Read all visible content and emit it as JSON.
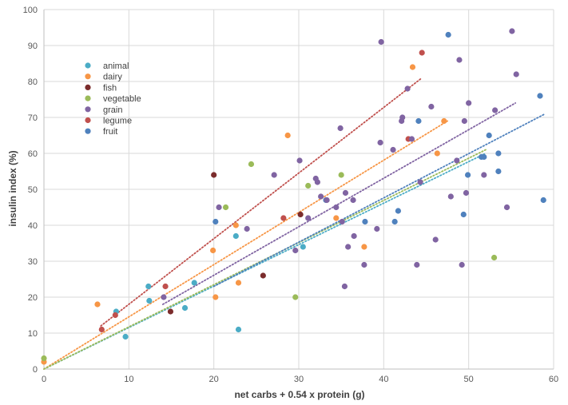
{
  "chart_data": {
    "type": "scatter",
    "xlabel": "net carbs + 0.54 x protein (g)",
    "ylabel": "insulin index (%)",
    "xlim": [
      0,
      60
    ],
    "ylim": [
      0,
      100
    ],
    "x_ticks": [
      0,
      10,
      20,
      30,
      40,
      50,
      60
    ],
    "y_ticks": [
      0,
      10,
      20,
      30,
      40,
      50,
      60,
      70,
      80,
      90,
      100
    ],
    "grid": "horizontal and vertical",
    "legend_position": "top-left",
    "series": [
      {
        "name": "animal",
        "color": "#4bacc6",
        "points": [
          [
            8.5,
            16
          ],
          [
            9.6,
            9
          ],
          [
            12.3,
            23
          ],
          [
            12.4,
            19
          ],
          [
            16.6,
            17
          ],
          [
            17.7,
            24
          ],
          [
            22.6,
            37
          ],
          [
            22.9,
            11
          ],
          [
            30.5,
            34
          ]
        ],
        "trendline": [
          [
            0,
            0
          ],
          [
            52,
            60
          ]
        ]
      },
      {
        "name": "dairy",
        "color": "#f79646",
        "points": [
          [
            0,
            2
          ],
          [
            6.3,
            18
          ],
          [
            19.9,
            33
          ],
          [
            20.2,
            20
          ],
          [
            22.6,
            40
          ],
          [
            22.9,
            24
          ],
          [
            28.7,
            65
          ],
          [
            34.4,
            42
          ],
          [
            37.7,
            34
          ],
          [
            43.4,
            84
          ],
          [
            46.3,
            60
          ],
          [
            47.1,
            69
          ]
        ],
        "trendline": [
          [
            0,
            0
          ],
          [
            47.5,
            69
          ]
        ]
      },
      {
        "name": "fish",
        "color": "#7b2c2c",
        "points": [
          [
            14.9,
            16
          ],
          [
            20,
            54
          ],
          [
            25.8,
            26
          ],
          [
            30.2,
            43
          ]
        ],
        "trendline": null
      },
      {
        "name": "vegetable",
        "color": "#9bbb59",
        "points": [
          [
            0,
            3
          ],
          [
            21.4,
            45
          ],
          [
            24.4,
            57
          ],
          [
            29.6,
            20
          ],
          [
            31.1,
            51
          ],
          [
            35,
            54
          ],
          [
            53,
            31
          ]
        ],
        "trendline": [
          [
            0,
            0
          ],
          [
            52,
            61
          ]
        ]
      },
      {
        "name": "grain",
        "color": "#8064a2",
        "points": [
          [
            14.1,
            20
          ],
          [
            20.6,
            45
          ],
          [
            23.9,
            39
          ],
          [
            27.1,
            54
          ],
          [
            29.6,
            33
          ],
          [
            30.1,
            58
          ],
          [
            31.1,
            42
          ],
          [
            32,
            53
          ],
          [
            32.2,
            52
          ],
          [
            32.6,
            48
          ],
          [
            33.3,
            47
          ],
          [
            34.4,
            45
          ],
          [
            34.9,
            67
          ],
          [
            35.1,
            41
          ],
          [
            35.4,
            23
          ],
          [
            35.5,
            49
          ],
          [
            35.8,
            34
          ],
          [
            36.4,
            47
          ],
          [
            36.5,
            37
          ],
          [
            37.7,
            29
          ],
          [
            39.2,
            39
          ],
          [
            39.6,
            63
          ],
          [
            39.7,
            91
          ],
          [
            41.1,
            61
          ],
          [
            42.1,
            69
          ],
          [
            42.2,
            70
          ],
          [
            42.8,
            78
          ],
          [
            43.3,
            64
          ],
          [
            43.9,
            29
          ],
          [
            44.3,
            52
          ],
          [
            45.6,
            73
          ],
          [
            46.1,
            36
          ],
          [
            47.9,
            48
          ],
          [
            48.6,
            58
          ],
          [
            48.9,
            86
          ],
          [
            49.2,
            29
          ],
          [
            49.5,
            69
          ],
          [
            49.7,
            49
          ],
          [
            50,
            74
          ],
          [
            51.8,
            54
          ],
          [
            53.1,
            72
          ],
          [
            54.5,
            45
          ],
          [
            55.1,
            94
          ],
          [
            55.6,
            82
          ]
        ],
        "trendline": [
          [
            14,
            18
          ],
          [
            55.5,
            74
          ]
        ]
      },
      {
        "name": "legume",
        "color": "#c0504d",
        "points": [
          [
            6.8,
            11
          ],
          [
            8.4,
            15
          ],
          [
            14.3,
            23
          ],
          [
            28.2,
            42
          ],
          [
            42.9,
            64
          ],
          [
            44.5,
            88
          ]
        ],
        "trendline": [
          [
            6.7,
            12
          ],
          [
            44.5,
            81
          ]
        ]
      },
      {
        "name": "fruit",
        "color": "#4f81bd",
        "points": [
          [
            20.2,
            41
          ],
          [
            33.2,
            47
          ],
          [
            37.8,
            41
          ],
          [
            41.3,
            41
          ],
          [
            41.7,
            44
          ],
          [
            44.1,
            69
          ],
          [
            47.6,
            93
          ],
          [
            49.4,
            43
          ],
          [
            49.9,
            54
          ],
          [
            51.5,
            59
          ],
          [
            51.8,
            59
          ],
          [
            52.4,
            65
          ],
          [
            53.5,
            55
          ],
          [
            53.5,
            60
          ],
          [
            58.4,
            76
          ],
          [
            58.8,
            47
          ]
        ],
        "trendline": [
          [
            20,
            23
          ],
          [
            59,
            71
          ]
        ]
      }
    ]
  }
}
